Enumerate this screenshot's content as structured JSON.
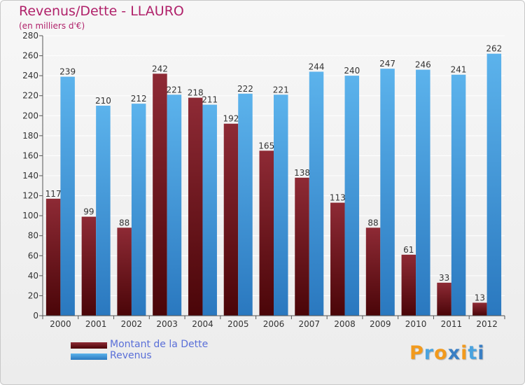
{
  "header": {
    "title": "Revenus/Dette - LLAURO",
    "subtitle": "(en milliers d'€)"
  },
  "legend": {
    "items": [
      {
        "label": "Montant de la Dette",
        "color": "#6b1018"
      },
      {
        "label": "Revenus",
        "color": "#3f95dd"
      }
    ]
  },
  "logo": {
    "text": "Proxiti",
    "letters": [
      "P",
      "r",
      "o",
      "x",
      "i",
      "t",
      "i"
    ],
    "colors": [
      "#f29a1d",
      "#4aa3df",
      "#f29a1d",
      "#3a7fc4",
      "#f29a1d",
      "#4aa3df",
      "#3a7fc4"
    ]
  },
  "colors": {
    "debt_top": "#8e2a35",
    "debt_bottom": "#4a0508",
    "revenue_top": "#5cb3ec",
    "revenue_bottom": "#2a78bf",
    "grid": "#ffffff",
    "axis": "#555555",
    "text": "#333333"
  },
  "chart_data": {
    "type": "bar",
    "title": "Revenus/Dette - LLAURO",
    "subtitle": "(en milliers d'€)",
    "categories": [
      "2000",
      "2001",
      "2002",
      "2003",
      "2004",
      "2005",
      "2006",
      "2007",
      "2008",
      "2009",
      "2010",
      "2011",
      "2012"
    ],
    "series": [
      {
        "name": "Montant de la Dette",
        "values": [
          117,
          99,
          88,
          242,
          218,
          192,
          165,
          138,
          113,
          88,
          61,
          33,
          13
        ]
      },
      {
        "name": "Revenus",
        "values": [
          239,
          210,
          212,
          221,
          211,
          222,
          221,
          244,
          240,
          247,
          246,
          241,
          262
        ]
      }
    ],
    "ylim": [
      0,
      280
    ],
    "yticks": [
      0,
      20,
      40,
      60,
      80,
      100,
      120,
      140,
      160,
      180,
      200,
      220,
      240,
      260,
      280
    ],
    "grid": true,
    "legend_position": "bottom-left"
  }
}
